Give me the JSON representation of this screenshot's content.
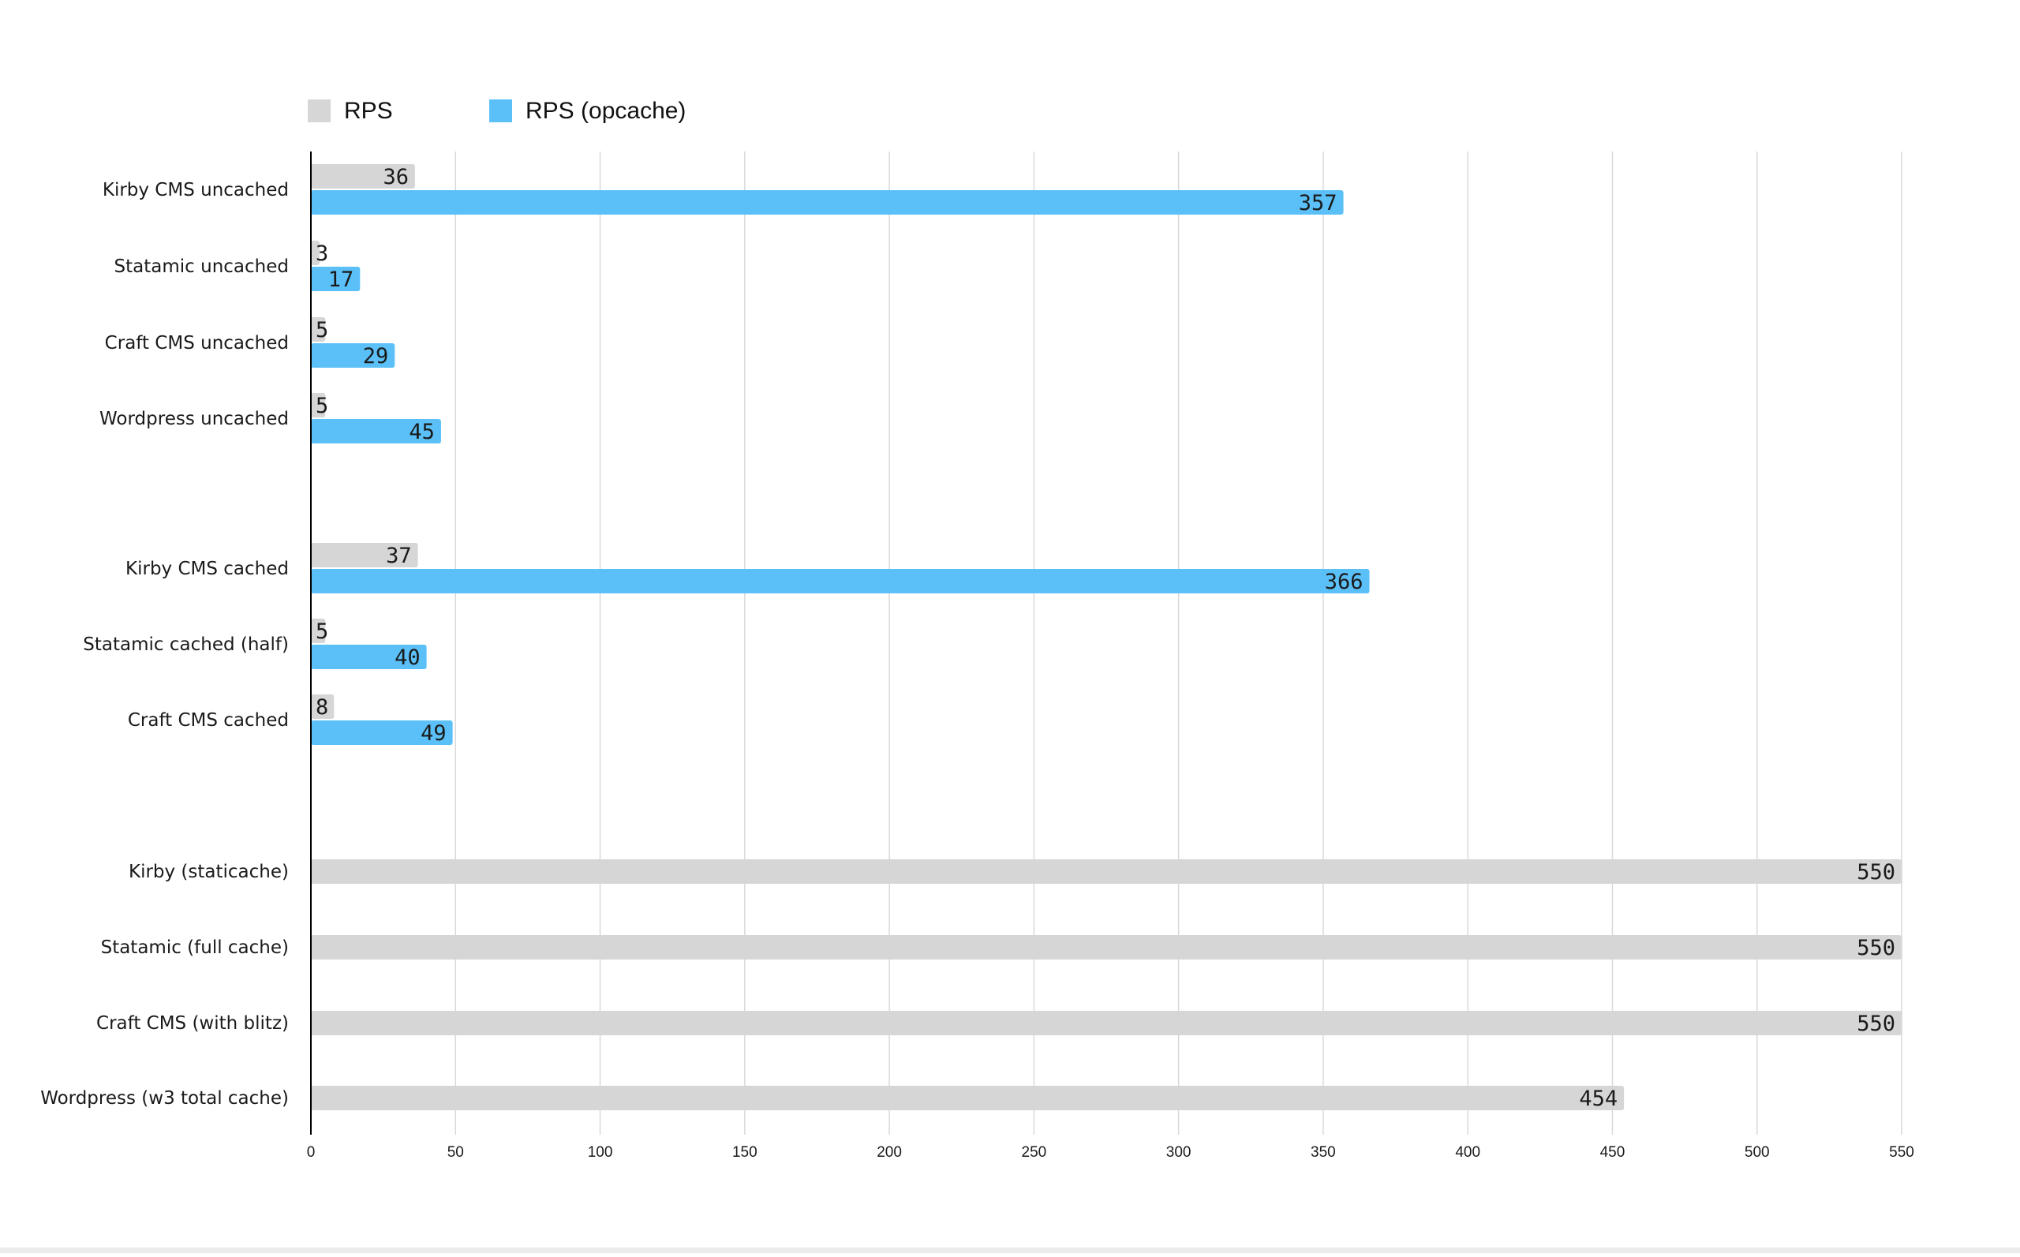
{
  "chart_data": {
    "type": "bar",
    "orientation": "horizontal",
    "title": "",
    "xlabel": "",
    "ylabel": "",
    "xlim": [
      0,
      550
    ],
    "ticks": [
      0,
      50,
      100,
      150,
      200,
      250,
      300,
      350,
      400,
      450,
      500,
      550
    ],
    "grid": true,
    "legend_position": "top-left",
    "categories": [
      "Kirby CMS uncached",
      "Statamic uncached",
      "Craft CMS uncached",
      "Wordpress uncached",
      "Kirby CMS cached",
      "Statamic cached (half)",
      "Craft CMS cached",
      "Kirby (staticache)",
      "Statamic (full cache)",
      "Craft CMS (with blitz)",
      "Wordpress (w3 total cache)"
    ],
    "series": [
      {
        "name": "RPS",
        "color": "#d6d6d6",
        "values": [
          36,
          3,
          5,
          5,
          37,
          5,
          8,
          550,
          550,
          550,
          454
        ]
      },
      {
        "name": "RPS (opcache)",
        "color": "#5bc0f8",
        "values": [
          357,
          17,
          29,
          45,
          366,
          40,
          49,
          null,
          null,
          null,
          null
        ]
      }
    ]
  }
}
